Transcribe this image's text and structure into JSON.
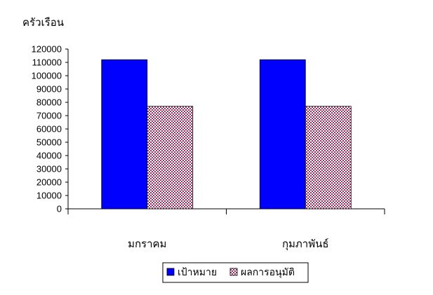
{
  "chart_data": {
    "type": "bar",
    "ylabel": "ครัวเรือน",
    "categories": [
      "มกราคม",
      "กุมภาพันธ์"
    ],
    "series": [
      {
        "name": "เป้าหมาย",
        "values": [
          112000,
          112000
        ],
        "color": "#0000FF",
        "pattern": "solid"
      },
      {
        "name": "ผลการอนุมัติ",
        "values": [
          77000,
          77000
        ],
        "color": "#993366",
        "pattern": "checkered"
      }
    ],
    "ylim": [
      0,
      120000
    ],
    "yticks": [
      0,
      10000,
      20000,
      30000,
      40000,
      50000,
      60000,
      70000,
      80000,
      90000,
      100000,
      110000,
      120000
    ],
    "grid": false,
    "legend_position": "bottom"
  }
}
